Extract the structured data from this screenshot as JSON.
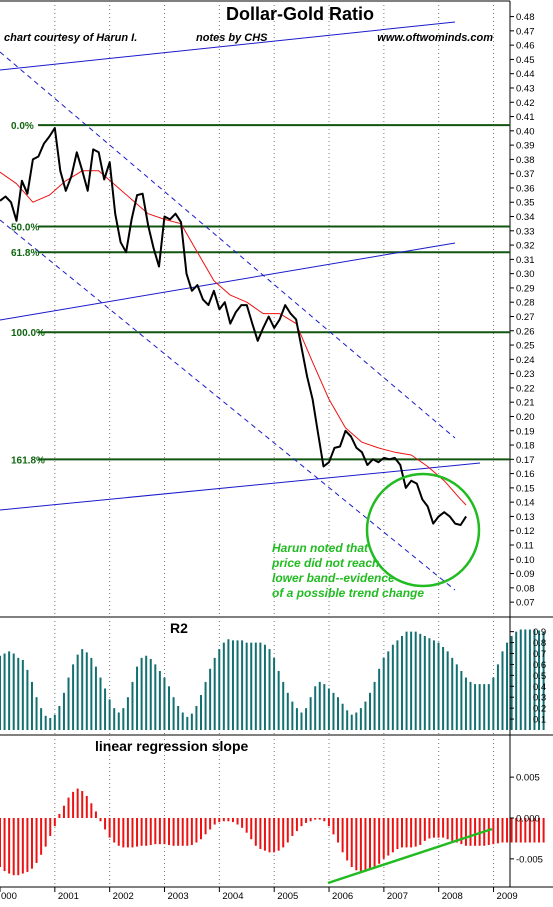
{
  "chart_data": [
    {
      "type": "line",
      "title": "Dollar-Gold Ratio",
      "credit": "chart courtesy of Harun I.",
      "notes_by": "notes by  CHS",
      "website": "www.oftwominds.com",
      "y_ticks": [
        "0.48",
        "0.47",
        "0.46",
        "0.45",
        "0.44",
        "0.43",
        "0.42",
        "0.41",
        "0.40",
        "0.39",
        "0.38",
        "0.37",
        "0.36",
        "0.35",
        "0.34",
        "0.33",
        "0.32",
        "0.31",
        "0.30",
        "0.29",
        "0.28",
        "0.27",
        "0.26",
        "0.25",
        "0.24",
        "0.23",
        "0.22",
        "0.21",
        "0.20",
        "0.19",
        "0.18",
        "0.17",
        "0.16",
        "0.15",
        "0.14",
        "0.13",
        "0.12",
        "0.11",
        "0.10",
        "0.09",
        "0.08",
        "0.07"
      ],
      "ylim": [
        0.068,
        0.486
      ],
      "xlim": [
        2000.0,
        2009.3
      ],
      "fib_levels": [
        {
          "label": "0.0%",
          "value": 0.404
        },
        {
          "label": "50.0%",
          "value": 0.333
        },
        {
          "label": "61.8%",
          "value": 0.315
        },
        {
          "label": "100.0%",
          "value": 0.259
        },
        {
          "label": "161.8%",
          "value": 0.17
        }
      ],
      "series": [
        {
          "x": [
            2000.0,
            2000.1,
            2000.2,
            2000.3,
            2000.4,
            2000.5,
            2000.6,
            2000.7,
            2000.8,
            2000.9,
            2001.0,
            2001.1,
            2001.2,
            2001.3,
            2001.4,
            2001.5,
            2001.6,
            2001.7,
            2001.8,
            2001.9,
            2002.0,
            2002.1,
            2002.2,
            2002.3,
            2002.4,
            2002.5,
            2002.6,
            2002.7,
            2002.8,
            2002.9,
            2003.0,
            2003.1,
            2003.2,
            2003.3,
            2003.4,
            2003.5,
            2003.6,
            2003.7,
            2003.8,
            2003.9,
            2004.0,
            2004.1,
            2004.2,
            2004.3,
            2004.4,
            2004.5,
            2004.6,
            2004.7,
            2004.8,
            2004.9,
            2005.0,
            2005.1,
            2005.2,
            2005.3,
            2005.4,
            2005.5,
            2005.6,
            2005.7,
            2005.8,
            2005.9,
            2006.0,
            2006.1,
            2006.2,
            2006.3,
            2006.4,
            2006.5,
            2006.6,
            2006.7,
            2006.8,
            2006.9,
            2007.0,
            2007.1,
            2007.2,
            2007.3,
            2007.4,
            2007.5,
            2007.6,
            2007.7,
            2007.8,
            2007.9,
            2008.0,
            2008.1,
            2008.2,
            2008.3,
            2008.4,
            2008.5
          ],
          "values": [
            0.351,
            0.354,
            0.35,
            0.337,
            0.365,
            0.356,
            0.38,
            0.382,
            0.391,
            0.396,
            0.402,
            0.372,
            0.358,
            0.368,
            0.385,
            0.372,
            0.358,
            0.387,
            0.385,
            0.366,
            0.378,
            0.342,
            0.322,
            0.315,
            0.338,
            0.355,
            0.356,
            0.334,
            0.318,
            0.305,
            0.34,
            0.338,
            0.342,
            0.336,
            0.3,
            0.288,
            0.292,
            0.282,
            0.278,
            0.288,
            0.275,
            0.28,
            0.265,
            0.273,
            0.278,
            0.278,
            0.265,
            0.253,
            0.262,
            0.27,
            0.262,
            0.268,
            0.278,
            0.272,
            0.268,
            0.248,
            0.228,
            0.212,
            0.188,
            0.165,
            0.168,
            0.178,
            0.179,
            0.19,
            0.186,
            0.178,
            0.175,
            0.166,
            0.17,
            0.168,
            0.171,
            0.17,
            0.171,
            0.166,
            0.15,
            0.155,
            0.153,
            0.142,
            0.137,
            0.125,
            0.13,
            0.133,
            0.13,
            0.125,
            0.124,
            0.13
          ]
        },
        {
          "x": [
            2000.0,
            2000.3,
            2000.6,
            2000.9,
            2001.2,
            2001.5,
            2001.8,
            2002.1,
            2002.4,
            2002.7,
            2003.0,
            2003.3,
            2003.6,
            2003.9,
            2004.2,
            2004.5,
            2004.8,
            2005.1,
            2005.4,
            2005.7,
            2006.0,
            2006.3,
            2006.6,
            2006.9,
            2007.2,
            2007.5,
            2007.8,
            2008.1,
            2008.4,
            2008.5
          ],
          "values": [
            0.371,
            0.363,
            0.35,
            0.355,
            0.365,
            0.372,
            0.372,
            0.362,
            0.352,
            0.342,
            0.338,
            0.335,
            0.315,
            0.295,
            0.285,
            0.28,
            0.272,
            0.272,
            0.265,
            0.238,
            0.212,
            0.192,
            0.182,
            0.178,
            0.175,
            0.173,
            0.165,
            0.155,
            0.142,
            0.138
          ]
        }
      ],
      "annotation": [
        "Harun noted that",
        "price did not reach",
        "lower band--evidence",
        "of a possible trend change"
      ]
    },
    {
      "type": "bar",
      "title": "R2",
      "y_ticks": [
        "0.9",
        "0.8",
        "0.7",
        "0.6",
        "0.5",
        "0.4",
        "0.3",
        "0.2",
        "0.1"
      ],
      "ylim": [
        0.0,
        0.97
      ],
      "start": 2000.0,
      "step": 0.0833,
      "values": [
        0.68,
        0.7,
        0.72,
        0.7,
        0.66,
        0.64,
        0.55,
        0.44,
        0.3,
        0.2,
        0.13,
        0.11,
        0.14,
        0.22,
        0.34,
        0.48,
        0.6,
        0.69,
        0.74,
        0.71,
        0.66,
        0.58,
        0.48,
        0.38,
        0.28,
        0.2,
        0.16,
        0.2,
        0.3,
        0.44,
        0.58,
        0.66,
        0.68,
        0.65,
        0.6,
        0.54,
        0.48,
        0.4,
        0.3,
        0.22,
        0.16,
        0.12,
        0.15,
        0.22,
        0.32,
        0.44,
        0.56,
        0.66,
        0.74,
        0.8,
        0.83,
        0.82,
        0.82,
        0.82,
        0.8,
        0.8,
        0.8,
        0.8,
        0.78,
        0.74,
        0.66,
        0.54,
        0.44,
        0.34,
        0.26,
        0.2,
        0.16,
        0.2,
        0.3,
        0.4,
        0.44,
        0.42,
        0.38,
        0.34,
        0.3,
        0.24,
        0.18,
        0.14,
        0.16,
        0.2,
        0.26,
        0.34,
        0.44,
        0.56,
        0.66,
        0.72,
        0.78,
        0.82,
        0.86,
        0.9,
        0.9,
        0.9,
        0.88,
        0.86,
        0.84,
        0.82,
        0.8,
        0.76,
        0.72,
        0.66,
        0.6,
        0.54,
        0.48,
        0.44,
        0.42,
        0.42,
        0.42,
        0.42,
        0.48,
        0.6,
        0.72,
        0.8,
        0.86,
        0.9,
        0.92,
        0.92,
        0.92,
        0.92,
        0.91,
        0.9
      ]
    },
    {
      "type": "bar",
      "title": "linear regression slope",
      "y_ticks": [
        "0.005",
        "0.000",
        "-0.005"
      ],
      "ylim": [
        -0.0082,
        0.0093
      ],
      "start": 2000.0,
      "step": 0.0833,
      "values": [
        -0.006,
        -0.0065,
        -0.0068,
        -0.007,
        -0.007,
        -0.0068,
        -0.0066,
        -0.0062,
        -0.0055,
        -0.0045,
        -0.0035,
        -0.0022,
        -0.001,
        0.0005,
        0.0015,
        0.0025,
        0.0032,
        0.0036,
        0.0033,
        0.0027,
        0.0018,
        0.0008,
        -0.0004,
        -0.0014,
        -0.0024,
        -0.003,
        -0.0034,
        -0.0036,
        -0.0036,
        -0.0036,
        -0.0035,
        -0.0034,
        -0.0034,
        -0.0033,
        -0.0032,
        -0.0032,
        -0.0032,
        -0.0033,
        -0.0034,
        -0.0034,
        -0.0034,
        -0.0034,
        -0.0033,
        -0.003,
        -0.0026,
        -0.002,
        -0.0014,
        -0.0008,
        -0.0005,
        -0.0004,
        -0.0004,
        -0.0005,
        -0.0008,
        -0.0012,
        -0.0018,
        -0.0026,
        -0.0034,
        -0.0038,
        -0.004,
        -0.0042,
        -0.0042,
        -0.004,
        -0.0036,
        -0.003,
        -0.0022,
        -0.0016,
        -0.001,
        -0.0006,
        -0.0004,
        -0.0002,
        -0.0002,
        -0.0004,
        -0.001,
        -0.002,
        -0.003,
        -0.0042,
        -0.0052,
        -0.006,
        -0.0064,
        -0.0065,
        -0.0065,
        -0.0063,
        -0.006,
        -0.0056,
        -0.005,
        -0.0046,
        -0.0042,
        -0.0038,
        -0.0036,
        -0.0036,
        -0.0036,
        -0.0035,
        -0.0033,
        -0.0028,
        -0.0025,
        -0.0024,
        -0.0024,
        -0.0024,
        -0.0026,
        -0.0028,
        -0.003,
        -0.0032,
        -0.0034,
        -0.0034,
        -0.0034,
        -0.0034,
        -0.0034,
        -0.0033,
        -0.0032,
        -0.0031,
        -0.003,
        -0.003,
        -0.003,
        -0.003,
        -0.003,
        -0.003,
        -0.003,
        -0.003,
        -0.003,
        -0.003
      ]
    }
  ],
  "x_ticks": [
    "000",
    "2001",
    "2002",
    "2003",
    "2004",
    "2005",
    "2006",
    "2007",
    "2008",
    "2009"
  ],
  "x_tick_values": [
    2000.0,
    2001,
    2002,
    2003,
    2004,
    2005,
    2006,
    2007,
    2008,
    2009
  ],
  "colors": {
    "price": "#000000",
    "ma": "#ee1111",
    "fib": "#115511",
    "channel_solid": "#1a1acc",
    "channel_dashed": "#1a1acc",
    "r2_bars": "#127070",
    "slope_bars": "#ee1111",
    "annotation": "#22bb22",
    "trend": "#22bb22"
  }
}
